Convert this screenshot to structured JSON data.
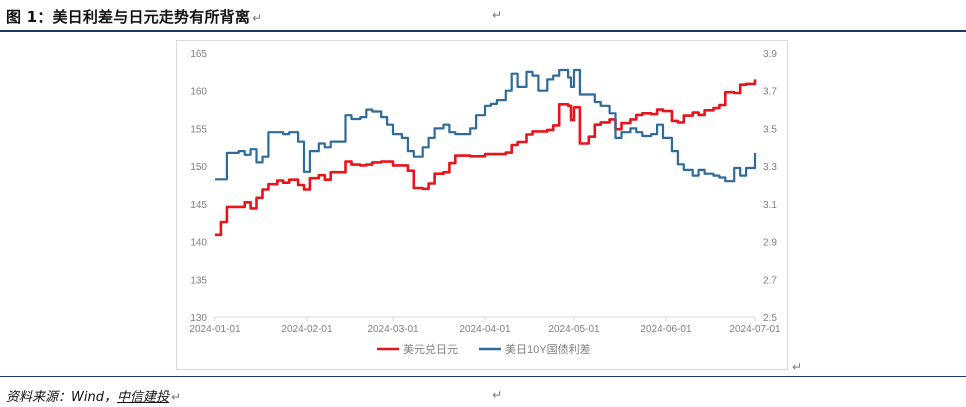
{
  "header": {
    "title": "图 1：美日利差与日元走势有所背离",
    "mark": "↵"
  },
  "footer": {
    "source_prefix": "资料来源：Wind，",
    "source_brand": "中信建投",
    "mark": "↵"
  },
  "colors": {
    "usdjpy": "#e8141b",
    "spread": "#2f6b9a",
    "axis_text": "#7f7f7f",
    "axis_line": "#d9d9d9",
    "title_rule": "#1f3a5f"
  },
  "chart_data": {
    "type": "line",
    "title": "",
    "xlabel": "",
    "ylabel": "",
    "grid": false,
    "legend_position": "bottom",
    "x_ticks": [
      "2024-01-01",
      "2024-02-01",
      "2024-03-01",
      "2024-04-01",
      "2024-05-01",
      "2024-06-01",
      "2024-07-01"
    ],
    "x_range": [
      "2024-01-01",
      "2024-07-01"
    ],
    "y_left_ticks": [
      "130",
      "135",
      "140",
      "145",
      "150",
      "155",
      "160",
      "165"
    ],
    "y_left_range": [
      130,
      165
    ],
    "y_right_ticks": [
      "2.5",
      "2.7",
      "2.9",
      "3.1",
      "3.3",
      "3.5",
      "3.7",
      "3.9"
    ],
    "y_right_range": [
      2.5,
      3.9
    ],
    "series": [
      {
        "name": "美元兑日元",
        "axis": "left",
        "points": [
          [
            "2024-01-01",
            140.9
          ],
          [
            "2024-01-03",
            142.6
          ],
          [
            "2024-01-05",
            144.6
          ],
          [
            "2024-01-09",
            144.6
          ],
          [
            "2024-01-11",
            145.2
          ],
          [
            "2024-01-13",
            144.4
          ],
          [
            "2024-01-15",
            145.8
          ],
          [
            "2024-01-17",
            146.9
          ],
          [
            "2024-01-19",
            147.6
          ],
          [
            "2024-01-22",
            148.1
          ],
          [
            "2024-01-24",
            147.8
          ],
          [
            "2024-01-26",
            148.2
          ],
          [
            "2024-01-29",
            147.5
          ],
          [
            "2024-01-31",
            146.9
          ],
          [
            "2024-02-02",
            148.4
          ],
          [
            "2024-02-05",
            148.8
          ],
          [
            "2024-02-07",
            148.2
          ],
          [
            "2024-02-09",
            149.2
          ],
          [
            "2024-02-12",
            149.2
          ],
          [
            "2024-02-14",
            150.6
          ],
          [
            "2024-02-16",
            150.2
          ],
          [
            "2024-02-19",
            150.1
          ],
          [
            "2024-02-21",
            150.2
          ],
          [
            "2024-02-23",
            150.5
          ],
          [
            "2024-02-26",
            150.6
          ],
          [
            "2024-02-28",
            150.6
          ],
          [
            "2024-03-01",
            150.1
          ],
          [
            "2024-03-04",
            150.1
          ],
          [
            "2024-03-06",
            149.4
          ],
          [
            "2024-03-08",
            147.1
          ],
          [
            "2024-03-11",
            147.0
          ],
          [
            "2024-03-13",
            147.7
          ],
          [
            "2024-03-15",
            149.0
          ],
          [
            "2024-03-18",
            149.2
          ],
          [
            "2024-03-20",
            150.4
          ],
          [
            "2024-03-22",
            151.4
          ],
          [
            "2024-03-25",
            151.4
          ],
          [
            "2024-03-27",
            151.3
          ],
          [
            "2024-03-29",
            151.3
          ],
          [
            "2024-04-01",
            151.6
          ],
          [
            "2024-04-03",
            151.6
          ],
          [
            "2024-04-05",
            151.6
          ],
          [
            "2024-04-08",
            151.8
          ],
          [
            "2024-04-10",
            152.8
          ],
          [
            "2024-04-12",
            153.2
          ],
          [
            "2024-04-15",
            154.2
          ],
          [
            "2024-04-17",
            154.6
          ],
          [
            "2024-04-19",
            154.6
          ],
          [
            "2024-04-22",
            154.8
          ],
          [
            "2024-04-24",
            155.4
          ],
          [
            "2024-04-26",
            158.2
          ],
          [
            "2024-04-29",
            158.0
          ],
          [
            "2024-04-30",
            156.1
          ],
          [
            "2024-05-01",
            157.8
          ],
          [
            "2024-05-03",
            153.0
          ],
          [
            "2024-05-06",
            153.9
          ],
          [
            "2024-05-08",
            155.5
          ],
          [
            "2024-05-10",
            155.8
          ],
          [
            "2024-05-13",
            156.2
          ],
          [
            "2024-05-15",
            154.9
          ],
          [
            "2024-05-17",
            155.7
          ],
          [
            "2024-05-20",
            156.2
          ],
          [
            "2024-05-22",
            156.8
          ],
          [
            "2024-05-24",
            157.0
          ],
          [
            "2024-05-27",
            156.9
          ],
          [
            "2024-05-29",
            157.5
          ],
          [
            "2024-05-31",
            157.3
          ],
          [
            "2024-06-03",
            156.0
          ],
          [
            "2024-06-05",
            155.8
          ],
          [
            "2024-06-07",
            156.7
          ],
          [
            "2024-06-10",
            157.1
          ],
          [
            "2024-06-12",
            156.8
          ],
          [
            "2024-06-14",
            157.4
          ],
          [
            "2024-06-17",
            157.7
          ],
          [
            "2024-06-19",
            158.1
          ],
          [
            "2024-06-21",
            159.8
          ],
          [
            "2024-06-24",
            159.7
          ],
          [
            "2024-06-26",
            160.8
          ],
          [
            "2024-06-28",
            160.9
          ],
          [
            "2024-07-01",
            161.5
          ]
        ]
      },
      {
        "name": "美日10Y国债利差",
        "axis": "right",
        "points": [
          [
            "2024-01-01",
            3.23
          ],
          [
            "2024-01-03",
            3.23
          ],
          [
            "2024-01-05",
            3.37
          ],
          [
            "2024-01-09",
            3.38
          ],
          [
            "2024-01-11",
            3.36
          ],
          [
            "2024-01-13",
            3.39
          ],
          [
            "2024-01-15",
            3.32
          ],
          [
            "2024-01-17",
            3.35
          ],
          [
            "2024-01-19",
            3.48
          ],
          [
            "2024-01-22",
            3.48
          ],
          [
            "2024-01-24",
            3.47
          ],
          [
            "2024-01-26",
            3.48
          ],
          [
            "2024-01-29",
            3.43
          ],
          [
            "2024-01-31",
            3.27
          ],
          [
            "2024-02-02",
            3.38
          ],
          [
            "2024-02-05",
            3.42
          ],
          [
            "2024-02-07",
            3.4
          ],
          [
            "2024-02-09",
            3.43
          ],
          [
            "2024-02-12",
            3.43
          ],
          [
            "2024-02-14",
            3.57
          ],
          [
            "2024-02-16",
            3.55
          ],
          [
            "2024-02-19",
            3.56
          ],
          [
            "2024-02-21",
            3.6
          ],
          [
            "2024-02-23",
            3.59
          ],
          [
            "2024-02-26",
            3.56
          ],
          [
            "2024-02-28",
            3.52
          ],
          [
            "2024-03-01",
            3.47
          ],
          [
            "2024-03-04",
            3.45
          ],
          [
            "2024-03-06",
            3.38
          ],
          [
            "2024-03-08",
            3.35
          ],
          [
            "2024-03-11",
            3.4
          ],
          [
            "2024-03-13",
            3.45
          ],
          [
            "2024-03-15",
            3.5
          ],
          [
            "2024-03-18",
            3.52
          ],
          [
            "2024-03-20",
            3.48
          ],
          [
            "2024-03-22",
            3.47
          ],
          [
            "2024-03-25",
            3.47
          ],
          [
            "2024-03-27",
            3.5
          ],
          [
            "2024-03-29",
            3.57
          ],
          [
            "2024-04-01",
            3.62
          ],
          [
            "2024-04-03",
            3.63
          ],
          [
            "2024-04-05",
            3.65
          ],
          [
            "2024-04-08",
            3.7
          ],
          [
            "2024-04-10",
            3.79
          ],
          [
            "2024-04-12",
            3.72
          ],
          [
            "2024-04-15",
            3.8
          ],
          [
            "2024-04-17",
            3.78
          ],
          [
            "2024-04-19",
            3.7
          ],
          [
            "2024-04-22",
            3.76
          ],
          [
            "2024-04-24",
            3.78
          ],
          [
            "2024-04-26",
            3.81
          ],
          [
            "2024-04-29",
            3.77
          ],
          [
            "2024-04-30",
            3.72
          ],
          [
            "2024-05-01",
            3.81
          ],
          [
            "2024-05-03",
            3.68
          ],
          [
            "2024-05-06",
            3.68
          ],
          [
            "2024-05-08",
            3.64
          ],
          [
            "2024-05-10",
            3.62
          ],
          [
            "2024-05-13",
            3.58
          ],
          [
            "2024-05-15",
            3.45
          ],
          [
            "2024-05-17",
            3.48
          ],
          [
            "2024-05-20",
            3.5
          ],
          [
            "2024-05-22",
            3.48
          ],
          [
            "2024-05-24",
            3.46
          ],
          [
            "2024-05-27",
            3.47
          ],
          [
            "2024-05-29",
            3.52
          ],
          [
            "2024-05-31",
            3.45
          ],
          [
            "2024-06-03",
            3.38
          ],
          [
            "2024-06-05",
            3.31
          ],
          [
            "2024-06-07",
            3.28
          ],
          [
            "2024-06-10",
            3.25
          ],
          [
            "2024-06-12",
            3.28
          ],
          [
            "2024-06-14",
            3.26
          ],
          [
            "2024-06-17",
            3.25
          ],
          [
            "2024-06-19",
            3.24
          ],
          [
            "2024-06-21",
            3.22
          ],
          [
            "2024-06-24",
            3.29
          ],
          [
            "2024-06-26",
            3.25
          ],
          [
            "2024-06-28",
            3.29
          ],
          [
            "2024-07-01",
            3.37
          ]
        ]
      }
    ]
  }
}
